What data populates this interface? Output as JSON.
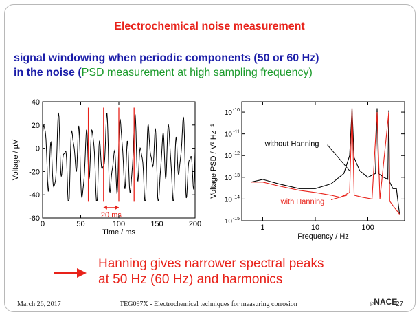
{
  "slide": {
    "title": "Electrochemical noise measurement",
    "subtitle_line1": "signal windowing when periodic components (50 or 60 Hz)",
    "subtitle_line2_prefix": "in the noise (",
    "subtitle_line2_green": "PSD measurement at high sampling frequency)",
    "note_line1": "Hanning gives narrower spectral peaks",
    "note_line2": "at 50 Hz (60 Hz) and harmonics",
    "footer_date": "March 26, 2017",
    "footer_course": "TEG097X - Electrochemical techniques for measuring corrosion",
    "footer_logo": "NACE",
    "page_number": "27",
    "accent_color": "#e8221a",
    "heading_color": "#1a1ca8",
    "green_color": "#1a9a2a"
  },
  "chart_data": [
    {
      "type": "line",
      "xlabel": "Time  /  ms",
      "ylabel": "Voltage  /  µV",
      "xlim": [
        0,
        200
      ],
      "ylim": [
        -60,
        40
      ],
      "xticks": [
        0,
        50,
        100,
        150,
        200
      ],
      "yticks": [
        -60,
        -40,
        -20,
        0,
        20,
        40
      ],
      "signal": "periodic noise, ~9 ms dominant period plus 50 Hz component, amplitude about ±45 µV",
      "window_markers_ms": [
        60,
        80,
        100,
        120
      ],
      "annotation": "20 ms",
      "annotation_span_ms": [
        80,
        100
      ]
    },
    {
      "type": "line",
      "scale": "log-log",
      "xlabel": "Frequency  /  Hz",
      "ylabel": "Voltage PSD  /  V² Hz⁻¹",
      "xlim": [
        0.4,
        500
      ],
      "ylim": [
        1e-15,
        3e-10
      ],
      "xticks": [
        1,
        10,
        100
      ],
      "xtick_labels": [
        "1",
        "10",
        "100"
      ],
      "yticks": [
        1e-15,
        1e-14,
        1e-13,
        1e-12,
        1e-11,
        1e-10
      ],
      "ytick_labels": [
        "10",
        "10",
        "10",
        "10",
        "10",
        "10"
      ],
      "ytick_exponents": [
        "-15",
        "-14",
        "-13",
        "-12",
        "-11",
        "-10"
      ],
      "series": [
        {
          "name": "without Hanning",
          "color": "#000000",
          "points": [
            [
              0.6,
              6e-14
            ],
            [
              1,
              8e-14
            ],
            [
              2,
              5e-14
            ],
            [
              5,
              3e-14
            ],
            [
              10,
              3e-14
            ],
            [
              20,
              5e-14
            ],
            [
              35,
              1.5e-13
            ],
            [
              45,
              1e-12
            ],
            [
              50,
              1.5e-10
            ],
            [
              55,
              8e-13
            ],
            [
              70,
              2e-13
            ],
            [
              100,
              1e-13
            ],
            [
              140,
              1.5e-13
            ],
            [
              150,
              1.5e-10
            ],
            [
              160,
              1.5e-13
            ],
            [
              200,
              1e-13
            ],
            [
              240,
              8e-14
            ],
            [
              250,
              1.2e-10
            ],
            [
              260,
              6e-14
            ],
            [
              300,
              3e-14
            ],
            [
              350,
              3e-14
            ],
            [
              400,
              2e-15
            ]
          ]
        },
        {
          "name": "with Hanning",
          "color": "#e8221a",
          "points": [
            [
              0.6,
              6e-14
            ],
            [
              1,
              6e-14
            ],
            [
              2,
              4e-14
            ],
            [
              5,
              2.5e-14
            ],
            [
              10,
              2e-14
            ],
            [
              20,
              1.5e-14
            ],
            [
              30,
              1.2e-14
            ],
            [
              45,
              2e-14
            ],
            [
              50,
              1.5e-10
            ],
            [
              55,
              1.5e-14
            ],
            [
              80,
              1.2e-14
            ],
            [
              120,
              1e-14
            ],
            [
              150,
              1e-10
            ],
            [
              170,
              1e-14
            ],
            [
              250,
              1e-10
            ],
            [
              260,
              8e-15
            ],
            [
              300,
              5e-15
            ],
            [
              400,
              2e-15
            ]
          ]
        }
      ]
    }
  ]
}
